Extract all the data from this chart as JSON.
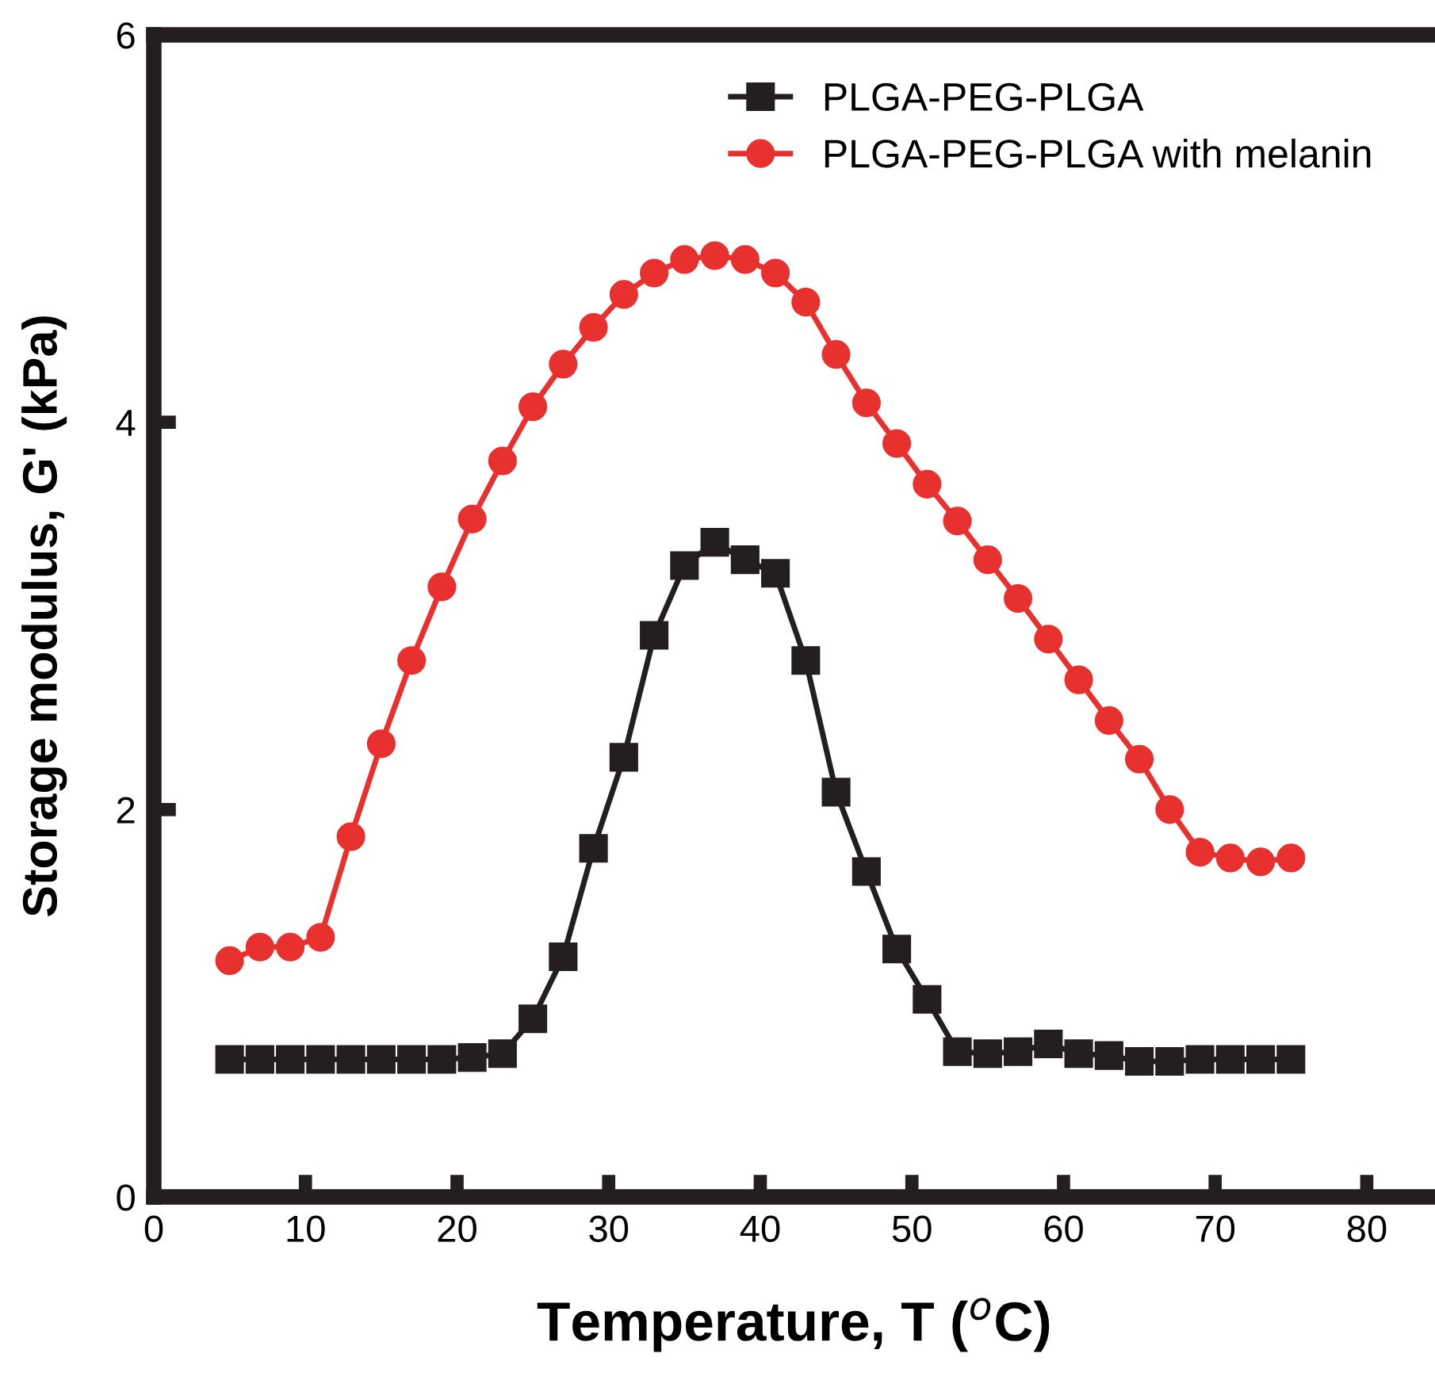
{
  "chart_data": {
    "type": "line",
    "xlabel": "Temperature, T ($^{o}$C)",
    "ylabel": "Storage modulus, G' (kPa)",
    "xlim": [
      0,
      84.5
    ],
    "xticks": [
      0,
      10,
      20,
      30,
      40,
      50,
      60,
      70,
      80
    ],
    "ylim": [
      0,
      6
    ],
    "yticks": [
      0,
      2,
      4,
      6
    ],
    "grid": false,
    "legend": "top right",
    "line_style": "solid",
    "x": [
      5,
      7,
      9,
      11,
      13,
      15,
      17,
      19,
      21,
      23,
      25,
      27,
      29,
      31,
      33,
      35,
      37,
      39,
      41,
      43,
      45,
      47,
      49,
      51,
      53,
      55,
      57,
      59,
      61,
      63,
      65,
      67,
      69,
      71,
      73,
      75
    ],
    "series": [
      {
        "name": "PLGA-PEG-PLGA",
        "color": "#231f20",
        "marker": "square",
        "values": [
          0.71,
          0.71,
          0.71,
          0.71,
          0.71,
          0.71,
          0.71,
          0.71,
          0.72,
          0.74,
          0.92,
          1.24,
          1.8,
          2.27,
          2.9,
          3.26,
          3.38,
          3.29,
          3.22,
          2.77,
          2.09,
          1.68,
          1.28,
          1.02,
          0.75,
          0.74,
          0.75,
          0.79,
          0.74,
          0.73,
          0.7,
          0.7,
          0.71,
          0.71,
          0.71,
          0.71
        ]
      },
      {
        "name": "PLGA-PEG-PLGA with melanin",
        "color": "#e8312f",
        "marker": "circle",
        "values": [
          1.22,
          1.29,
          1.29,
          1.34,
          1.86,
          2.34,
          2.77,
          3.15,
          3.5,
          3.8,
          4.08,
          4.3,
          4.49,
          4.66,
          4.77,
          4.84,
          4.86,
          4.84,
          4.77,
          4.62,
          4.35,
          4.1,
          3.89,
          3.68,
          3.49,
          3.29,
          3.09,
          2.88,
          2.67,
          2.46,
          2.26,
          2.0,
          1.78,
          1.75,
          1.73,
          1.75
        ]
      }
    ]
  }
}
